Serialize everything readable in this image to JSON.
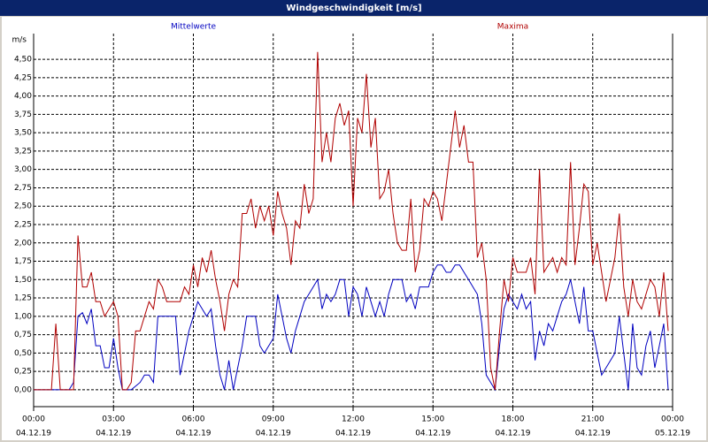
{
  "chart_data": {
    "type": "line",
    "title": "Windgeschwindigkeit [m/s]",
    "ylabel": "m/s",
    "x": [
      0,
      10,
      20,
      30,
      40,
      50,
      60,
      70,
      80,
      90,
      100,
      110,
      120,
      130,
      140,
      150,
      160,
      170,
      180,
      190,
      200,
      210,
      220,
      230,
      240,
      250,
      260,
      270,
      280,
      290,
      300,
      310,
      320,
      330,
      340,
      350,
      360,
      370,
      380,
      390,
      400,
      410,
      420,
      430,
      440,
      450,
      460,
      470,
      480,
      490,
      500,
      510,
      520,
      530,
      540,
      550,
      560,
      570,
      580,
      590,
      600,
      610,
      620,
      630,
      640,
      650,
      660,
      670,
      680,
      690,
      700,
      710,
      720,
      730,
      740,
      750,
      760,
      770,
      780,
      790,
      800,
      810,
      820,
      830,
      840,
      850,
      860,
      870,
      880,
      890,
      900,
      910,
      920,
      930,
      940,
      950,
      960,
      970,
      980,
      990,
      1000,
      1010,
      1020,
      1030,
      1040,
      1050,
      1060,
      1070,
      1080,
      1090,
      1100,
      1110,
      1120,
      1130,
      1140,
      1150,
      1160,
      1170,
      1180,
      1190,
      1200,
      1210,
      1220,
      1230,
      1240,
      1250,
      1260,
      1270,
      1280,
      1290,
      1300,
      1310,
      1320,
      1330,
      1340,
      1350,
      1360,
      1370,
      1380,
      1390,
      1400,
      1410,
      1420,
      1430
    ],
    "series": [
      {
        "name": "Mittelwerte",
        "color": "#0000c0",
        "values": [
          0,
          0,
          0,
          0,
          0,
          0,
          0,
          0,
          0,
          0.1,
          1.0,
          1.05,
          0.9,
          1.1,
          0.6,
          0.6,
          0.3,
          0.3,
          0.7,
          0.3,
          0,
          0,
          0,
          0.05,
          0.1,
          0.2,
          0.2,
          0.1,
          1.0,
          1.0,
          1.0,
          1.0,
          1.0,
          0.2,
          0.5,
          0.8,
          1.0,
          1.2,
          1.1,
          1.0,
          1.1,
          0.6,
          0.2,
          0,
          0.4,
          0,
          0.3,
          0.6,
          1.0,
          1.0,
          1.0,
          0.6,
          0.5,
          0.6,
          0.7,
          1.3,
          1.0,
          0.7,
          0.5,
          0.8,
          1.0,
          1.2,
          1.3,
          1.4,
          1.5,
          1.1,
          1.3,
          1.2,
          1.3,
          1.5,
          1.5,
          1.0,
          1.4,
          1.3,
          1.0,
          1.4,
          1.2,
          1.0,
          1.2,
          1.0,
          1.3,
          1.5,
          1.5,
          1.5,
          1.2,
          1.3,
          1.1,
          1.4,
          1.4,
          1.4,
          1.6,
          1.7,
          1.7,
          1.6,
          1.6,
          1.7,
          1.7,
          1.6,
          1.5,
          1.4,
          1.3,
          0.9,
          0.2,
          0.1,
          0,
          0.6,
          1.1,
          1.3,
          1.2,
          1.1,
          1.3,
          1.1,
          1.2,
          0.4,
          0.8,
          0.6,
          0.9,
          0.8,
          1.0,
          1.2,
          1.3,
          1.5,
          1.2,
          0.9,
          1.4,
          0.8,
          0.8,
          0.5,
          0.2,
          0.3,
          0.4,
          0.5,
          1.0,
          0.5,
          0,
          0.9,
          0.3,
          0.2,
          0.6,
          0.8,
          0.3,
          0.6,
          0.9,
          0
        ]
      },
      {
        "name": "Maxima",
        "color": "#b00000",
        "values": [
          0,
          0,
          0,
          0,
          0,
          0.9,
          0,
          0,
          0,
          0,
          2.1,
          1.4,
          1.4,
          1.6,
          1.2,
          1.2,
          1.0,
          1.1,
          1.2,
          1.0,
          0,
          0,
          0.1,
          0.8,
          0.8,
          1.0,
          1.2,
          1.1,
          1.5,
          1.4,
          1.2,
          1.2,
          1.2,
          1.2,
          1.4,
          1.3,
          1.7,
          1.4,
          1.8,
          1.6,
          1.9,
          1.5,
          1.2,
          0.8,
          1.3,
          1.5,
          1.4,
          2.4,
          2.4,
          2.6,
          2.2,
          2.5,
          2.3,
          2.5,
          2.1,
          2.7,
          2.4,
          2.2,
          1.7,
          2.3,
          2.2,
          2.8,
          2.4,
          2.6,
          4.6,
          3.1,
          3.5,
          3.1,
          3.7,
          3.9,
          3.6,
          3.8,
          2.5,
          3.7,
          3.5,
          4.3,
          3.3,
          3.7,
          2.6,
          2.7,
          3.0,
          2.4,
          2.0,
          1.9,
          1.9,
          2.6,
          1.6,
          1.9,
          2.6,
          2.5,
          2.7,
          2.6,
          2.3,
          2.8,
          3.3,
          3.8,
          3.3,
          3.6,
          3.1,
          3.1,
          1.8,
          2.0,
          1.5,
          0.3,
          0,
          0.8,
          1.5,
          1.2,
          1.8,
          1.6,
          1.6,
          1.6,
          1.8,
          1.3,
          3.0,
          1.6,
          1.7,
          1.8,
          1.6,
          1.8,
          1.7,
          3.1,
          1.7,
          2.2,
          2.8,
          2.7,
          1.7,
          2.0,
          1.6,
          1.2,
          1.5,
          1.8,
          2.4,
          1.4,
          1.0,
          1.5,
          1.2,
          1.1,
          1.3,
          1.5,
          1.4,
          1.0,
          1.6,
          0.8
        ]
      }
    ],
    "xlim": [
      0,
      1440
    ],
    "xticks": [
      {
        "value": 0,
        "label": "00:00"
      },
      {
        "value": 180,
        "label": "03:00"
      },
      {
        "value": 360,
        "label": "06:00"
      },
      {
        "value": 540,
        "label": "09:00"
      },
      {
        "value": 720,
        "label": "12:00"
      },
      {
        "value": 900,
        "label": "15:00"
      },
      {
        "value": 1080,
        "label": "18:00"
      },
      {
        "value": 1260,
        "label": "21:00"
      },
      {
        "value": 1440,
        "label": "00:00"
      }
    ],
    "xtick_dates": [
      "04.12.19",
      "04.12.19",
      "04.12.19",
      "04.12.19",
      "04.12.19",
      "04.12.19",
      "04.12.19",
      "04.12.19",
      "05.12.19"
    ],
    "ylim": [
      -0.23,
      4.85
    ],
    "yticks": [
      {
        "value": 0,
        "label": "0,00"
      },
      {
        "value": 0.25,
        "label": "0,25"
      },
      {
        "value": 0.5,
        "label": "0,50"
      },
      {
        "value": 0.75,
        "label": "0,75"
      },
      {
        "value": 1,
        "label": "1,00"
      },
      {
        "value": 1.25,
        "label": "1,25"
      },
      {
        "value": 1.5,
        "label": "1,50"
      },
      {
        "value": 1.75,
        "label": "1,75"
      },
      {
        "value": 2,
        "label": "2,00"
      },
      {
        "value": 2.25,
        "label": "2,25"
      },
      {
        "value": 2.5,
        "label": "2,50"
      },
      {
        "value": 2.75,
        "label": "2,75"
      },
      {
        "value": 3,
        "label": "3,00"
      },
      {
        "value": 3.25,
        "label": "3,25"
      },
      {
        "value": 3.5,
        "label": "3,50"
      },
      {
        "value": 3.75,
        "label": "3,75"
      },
      {
        "value": 4,
        "label": "4,00"
      },
      {
        "value": 4.25,
        "label": "4,25"
      },
      {
        "value": 4.5,
        "label": "4,50"
      }
    ],
    "grid": true
  }
}
